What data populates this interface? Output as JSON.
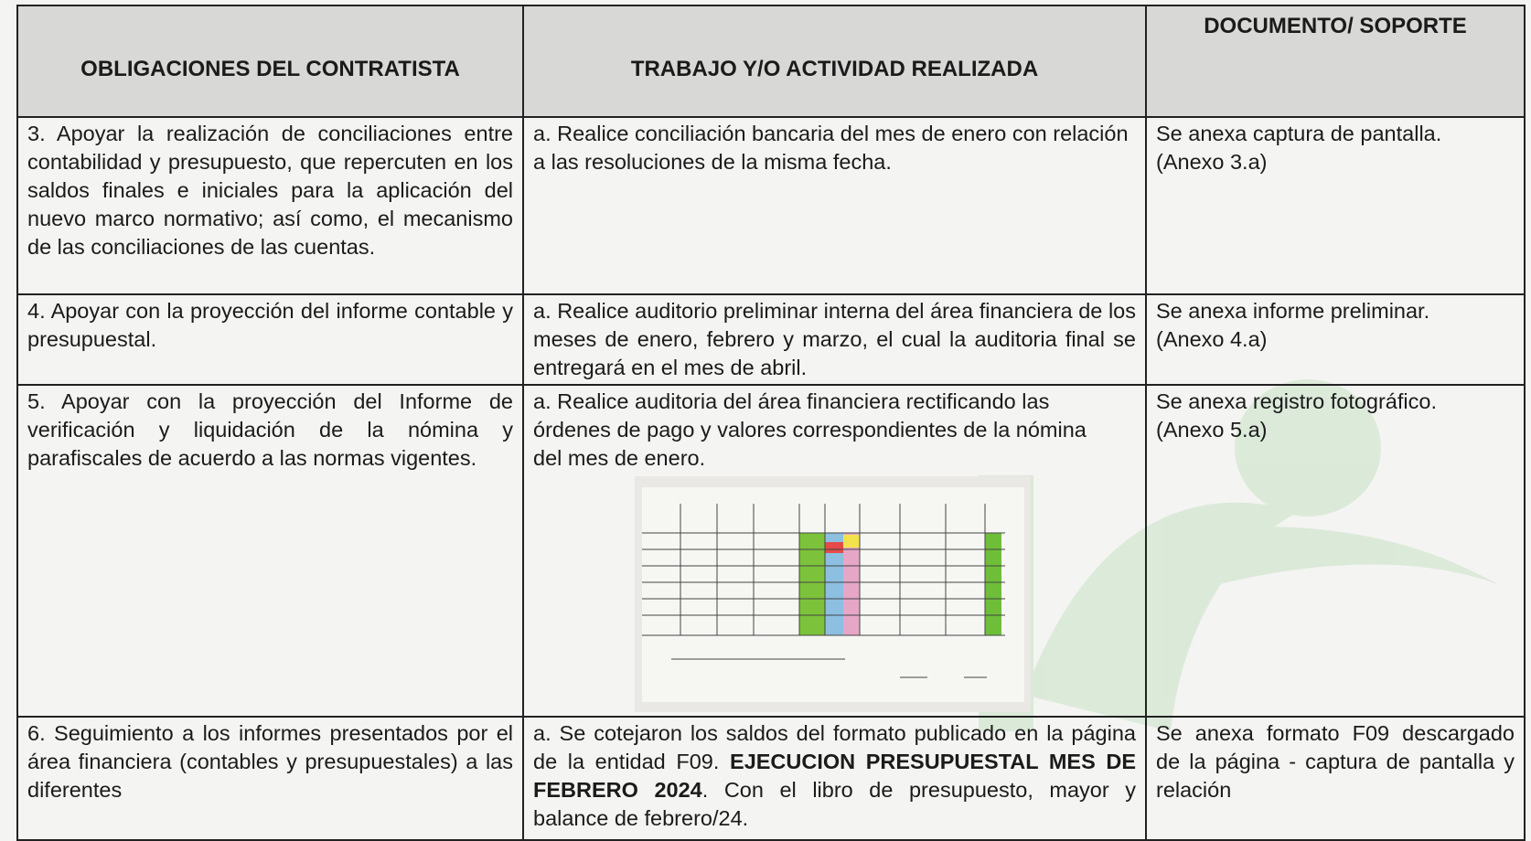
{
  "table": {
    "header": [
      "OBLIGACIONES DEL CONTRATISTA",
      "TRABAJO Y/O ACTIVIDAD REALIZADA",
      "DOCUMENTO/ SOPORTE"
    ],
    "rows": [
      [
        "3. Apoyar la realización de conciliaciones entre contabilidad y presupuesto, que repercuten en los saldos finales e iniciales para la aplicación del nuevo marco normativo; así como, el mecanismo de las conciliaciones de las cuentas.",
        "a. Realice conciliación bancaria del mes de enero con relación a las resoluciones de la misma fecha.",
        [
          "Se anexa captura de pantalla.",
          "(Anexo 3.a)"
        ]
      ],
      [
        "4. Apoyar con la proyección del informe contable y presupuestal.",
        "a. Realice auditorio preliminar interna del área financiera de los meses de enero, febrero y marzo, el cual la auditoria final se entregará en el mes de abril.",
        [
          "Se anexa informe preliminar.",
          "(Anexo 4.a)"
        ]
      ],
      [
        "5. Apoyar con la proyección del Informe de verificación y liquidación de la nómina y parafiscales de acuerdo a las normas vigentes.",
        "a. Realice auditoria del área financiera rectificando las órdenes de pago y valores correspondientes de la nómina del mes de enero.",
        [
          "Se anexa registro fotográfico.",
          "(Anexo 5.a)"
        ]
      ],
      [
        "6. Seguimiento a los informes presentados por el área financiera (contables y presupuestales) a las diferentes",
        {
          "text_before": "a. Se cotejaron los saldos del formato publicado en la página de la entidad F09.",
          "bold": "EJECUCION PRESUPUESTAL MES DE FEBRERO 2024",
          "text_after": ". Con el libro de presupuesto, mayor y balance de febrero/24."
        },
        [
          "Se anexa formato F09 descargado de la página - captura de pantalla y relación"
        ]
      ]
    ]
  }
}
